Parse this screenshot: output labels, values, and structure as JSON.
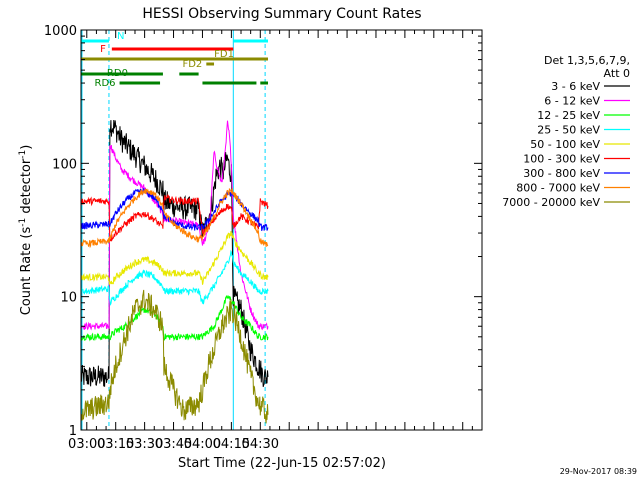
{
  "chart_data": {
    "type": "line",
    "title": "HESSI Observing Summary Count Rates",
    "xlabel": "Start Time (22-Jun-15 02:57:02)",
    "ylabel_main": "Count Rate (s",
    "ylabel_exp1": "-1",
    "ylabel_mid": " detector",
    "ylabel_exp2": "-1",
    "ylabel_end": ")",
    "x_range_min": [
      177,
      385
    ],
    "y_log_range": [
      1,
      1000
    ],
    "x_ticks": [
      {
        "label": "03:00",
        "min": 180
      },
      {
        "label": "03:15",
        "min": 195
      },
      {
        "label": "03:30",
        "min": 210
      },
      {
        "label": "03:45",
        "min": 225
      },
      {
        "label": "04:00",
        "min": 240
      },
      {
        "label": "04:15",
        "min": 255
      },
      {
        "label": "04:30",
        "min": 270
      }
    ],
    "y_ticks": [
      {
        "label": "1",
        "value": 1
      },
      {
        "label": "10",
        "value": 10
      },
      {
        "label": "100",
        "value": 100
      },
      {
        "label": "1000",
        "value": 1000
      }
    ],
    "legend_title_1": "Det 1,3,5,6,7,9,",
    "legend_title_2": "Att 0",
    "series": [
      {
        "name": "3 - 6 keV",
        "color": "#000000",
        "points": [
          [
            177,
            2.5
          ],
          [
            180,
            2.5
          ],
          [
            191.5,
            2.5
          ],
          [
            192,
            200
          ],
          [
            195,
            180
          ],
          [
            198,
            150
          ],
          [
            204,
            120
          ],
          [
            210,
            95
          ],
          [
            216,
            75
          ],
          [
            219.5,
            62
          ],
          [
            220,
            52
          ],
          [
            225,
            48
          ],
          [
            230,
            46
          ],
          [
            235,
            46
          ],
          [
            238,
            45
          ],
          [
            240,
            30
          ],
          [
            243,
            38
          ],
          [
            245,
            50
          ],
          [
            247,
            80
          ],
          [
            249,
            95
          ],
          [
            251,
            85
          ],
          [
            252,
            100
          ],
          [
            253,
            110
          ],
          [
            254,
            90
          ],
          [
            255,
            85
          ],
          [
            256,
            10
          ],
          [
            260,
            8
          ],
          [
            265,
            4
          ],
          [
            269,
            3
          ],
          [
            272,
            2.5
          ],
          [
            274,
            2.5
          ]
        ]
      },
      {
        "name": "6 - 12 keV",
        "color": "#ff00ff",
        "points": [
          [
            177,
            6
          ],
          [
            180,
            6
          ],
          [
            191.5,
            6
          ],
          [
            192,
            140
          ],
          [
            195,
            110
          ],
          [
            198,
            90
          ],
          [
            204,
            75
          ],
          [
            210,
            65
          ],
          [
            216,
            50
          ],
          [
            219.5,
            42
          ],
          [
            220,
            38
          ],
          [
            225,
            37
          ],
          [
            230,
            36
          ],
          [
            235,
            35
          ],
          [
            238,
            34
          ],
          [
            240,
            25
          ],
          [
            242,
            28
          ],
          [
            244,
            40
          ],
          [
            246,
            120
          ],
          [
            248,
            90
          ],
          [
            250,
            70
          ],
          [
            252,
            130
          ],
          [
            253,
            200
          ],
          [
            254,
            160
          ],
          [
            255,
            100
          ],
          [
            256,
            40
          ],
          [
            260,
            15
          ],
          [
            265,
            8
          ],
          [
            269,
            6
          ],
          [
            272,
            6
          ],
          [
            274,
            6
          ]
        ]
      },
      {
        "name": "12 - 25 keV",
        "color": "#00ff00",
        "points": [
          [
            177,
            5
          ],
          [
            180,
            5
          ],
          [
            191.5,
            5
          ],
          [
            192,
            5
          ],
          [
            195,
            5.5
          ],
          [
            200,
            6
          ],
          [
            205,
            7
          ],
          [
            210,
            8
          ],
          [
            215,
            7.5
          ],
          [
            219.5,
            6
          ],
          [
            220,
            5
          ],
          [
            225,
            5
          ],
          [
            230,
            5
          ],
          [
            235,
            5
          ],
          [
            238,
            5
          ],
          [
            240,
            5
          ],
          [
            243,
            5.5
          ],
          [
            246,
            6
          ],
          [
            250,
            8
          ],
          [
            253,
            10
          ],
          [
            256,
            9
          ],
          [
            260,
            7
          ],
          [
            265,
            6
          ],
          [
            269,
            5
          ],
          [
            272,
            5
          ],
          [
            274,
            5
          ]
        ]
      },
      {
        "name": "25 - 50 keV",
        "color": "#00ffff",
        "points": [
          [
            177,
            11
          ],
          [
            180,
            11
          ],
          [
            191.5,
            11.5
          ],
          [
            192,
            9
          ],
          [
            195,
            10
          ],
          [
            200,
            12
          ],
          [
            205,
            14
          ],
          [
            210,
            15
          ],
          [
            215,
            14
          ],
          [
            219.5,
            12
          ],
          [
            220,
            11
          ],
          [
            225,
            11
          ],
          [
            230,
            11
          ],
          [
            235,
            11
          ],
          [
            238,
            11
          ],
          [
            240,
            9
          ],
          [
            243,
            10.5
          ],
          [
            246,
            12
          ],
          [
            250,
            15
          ],
          [
            253,
            18
          ],
          [
            255,
            22
          ],
          [
            256,
            18
          ],
          [
            260,
            15
          ],
          [
            265,
            13
          ],
          [
            269,
            11
          ],
          [
            272,
            11
          ],
          [
            274,
            11
          ]
        ]
      },
      {
        "name": "50 - 100 keV",
        "color": "#e8e800",
        "points": [
          [
            177,
            14
          ],
          [
            180,
            14
          ],
          [
            191.5,
            14
          ],
          [
            192,
            12
          ],
          [
            195,
            14
          ],
          [
            200,
            16
          ],
          [
            205,
            18
          ],
          [
            210,
            19
          ],
          [
            215,
            18
          ],
          [
            219.5,
            16
          ],
          [
            220,
            15
          ],
          [
            225,
            15
          ],
          [
            230,
            15
          ],
          [
            235,
            15
          ],
          [
            238,
            15
          ],
          [
            240,
            13
          ],
          [
            243,
            15
          ],
          [
            246,
            18
          ],
          [
            250,
            23
          ],
          [
            253,
            28
          ],
          [
            255,
            30
          ],
          [
            256,
            27
          ],
          [
            260,
            22
          ],
          [
            265,
            18
          ],
          [
            269,
            15
          ],
          [
            272,
            14
          ],
          [
            274,
            14
          ]
        ]
      },
      {
        "name": "100 - 300 keV",
        "color": "#ff0000",
        "points": [
          [
            177,
            52
          ],
          [
            180,
            52
          ],
          [
            191.5,
            52
          ],
          [
            192,
            27
          ],
          [
            195,
            30
          ],
          [
            200,
            35
          ],
          [
            205,
            40
          ],
          [
            210,
            42
          ],
          [
            215,
            38
          ],
          [
            219.5,
            33
          ],
          [
            220,
            55
          ],
          [
            225,
            53
          ],
          [
            230,
            52
          ],
          [
            235,
            52
          ],
          [
            238,
            52
          ],
          [
            240,
            30
          ],
          [
            243,
            33
          ],
          [
            246,
            38
          ],
          [
            250,
            44
          ],
          [
            253,
            48
          ],
          [
            255,
            45
          ],
          [
            256,
            34
          ],
          [
            260,
            40
          ],
          [
            265,
            36
          ],
          [
            269,
            33
          ],
          [
            270,
            52
          ],
          [
            272,
            50
          ],
          [
            274,
            48
          ]
        ]
      },
      {
        "name": "300 - 800 keV",
        "color": "#0000ff",
        "points": [
          [
            177,
            34
          ],
          [
            180,
            34
          ],
          [
            191.5,
            35
          ],
          [
            192,
            35
          ],
          [
            195,
            42
          ],
          [
            200,
            52
          ],
          [
            205,
            60
          ],
          [
            210,
            62
          ],
          [
            215,
            55
          ],
          [
            219.5,
            45
          ],
          [
            220,
            40
          ],
          [
            225,
            36
          ],
          [
            230,
            34
          ],
          [
            235,
            33
          ],
          [
            238,
            33
          ],
          [
            240,
            33
          ],
          [
            243,
            37
          ],
          [
            246,
            43
          ],
          [
            250,
            53
          ],
          [
            253,
            58
          ],
          [
            255,
            60
          ],
          [
            256,
            58
          ],
          [
            260,
            50
          ],
          [
            265,
            42
          ],
          [
            269,
            37
          ],
          [
            270,
            33
          ],
          [
            272,
            33
          ],
          [
            274,
            33
          ]
        ]
      },
      {
        "name": "800 - 7000 keV",
        "color": "#ff8000",
        "points": [
          [
            177,
            25
          ],
          [
            180,
            25
          ],
          [
            191.5,
            26
          ],
          [
            192,
            27
          ],
          [
            195,
            35
          ],
          [
            200,
            45
          ],
          [
            205,
            55
          ],
          [
            210,
            63
          ],
          [
            215,
            60
          ],
          [
            219.5,
            48
          ],
          [
            220,
            42
          ],
          [
            225,
            35
          ],
          [
            230,
            31
          ],
          [
            235,
            28
          ],
          [
            238,
            27
          ],
          [
            240,
            28
          ],
          [
            243,
            32
          ],
          [
            246,
            40
          ],
          [
            250,
            52
          ],
          [
            253,
            60
          ],
          [
            255,
            62
          ],
          [
            256,
            60
          ],
          [
            260,
            50
          ],
          [
            265,
            38
          ],
          [
            269,
            30
          ],
          [
            270,
            26
          ],
          [
            272,
            25
          ],
          [
            274,
            24
          ]
        ]
      },
      {
        "name": "7000 - 20000 keV",
        "color": "#8b8b00",
        "points": [
          [
            177,
            1.4
          ],
          [
            180,
            1.4
          ],
          [
            191.5,
            1.6
          ],
          [
            192,
            2
          ],
          [
            195,
            3
          ],
          [
            200,
            5
          ],
          [
            205,
            8
          ],
          [
            210,
            9.5
          ],
          [
            215,
            8
          ],
          [
            219.5,
            6
          ],
          [
            220,
            3
          ],
          [
            225,
            2
          ],
          [
            230,
            1.4
          ],
          [
            235,
            1.5
          ],
          [
            238,
            1.6
          ],
          [
            240,
            2
          ],
          [
            243,
            3
          ],
          [
            246,
            4
          ],
          [
            250,
            6
          ],
          [
            253,
            7
          ],
          [
            255,
            8
          ],
          [
            256,
            7.5
          ],
          [
            260,
            5
          ],
          [
            265,
            2.5
          ],
          [
            269,
            1.6
          ],
          [
            272,
            1.4
          ],
          [
            274,
            1.3
          ]
        ]
      }
    ],
    "flag_bars": [
      {
        "label": "N",
        "color": "#00ffff",
        "segments": [
          [
            177,
            191.5
          ],
          [
            256,
            274
          ]
        ]
      },
      {
        "label": "F",
        "color": "#ff0000",
        "segments": [
          [
            193,
            256
          ]
        ]
      },
      {
        "label": "",
        "color": "#8b8b00",
        "segments": [
          [
            177,
            274
          ]
        ]
      },
      {
        "label": "FD1",
        "color": "#8b8b00",
        "segments": [
          [
            244,
            250
          ]
        ]
      },
      {
        "label": "FD2",
        "color": "#8b8b00",
        "segments": [
          [
            242,
            246
          ]
        ]
      },
      {
        "label": "RD0",
        "color": "#008000",
        "segments": [
          [
            177,
            219.5
          ],
          [
            228,
            238
          ]
        ]
      },
      {
        "label": "RD6",
        "color": "#008000",
        "segments": [
          [
            197,
            218
          ],
          [
            240,
            268
          ],
          [
            270,
            274
          ]
        ]
      }
    ],
    "vertical_lines": [
      {
        "min": 177.5,
        "style": "solid"
      },
      {
        "min": 191.5,
        "style": "dashed"
      },
      {
        "min": 256,
        "style": "solid"
      },
      {
        "min": 272.5,
        "style": "dashed"
      }
    ]
  },
  "timestamp": "29-Nov-2017 08:39"
}
